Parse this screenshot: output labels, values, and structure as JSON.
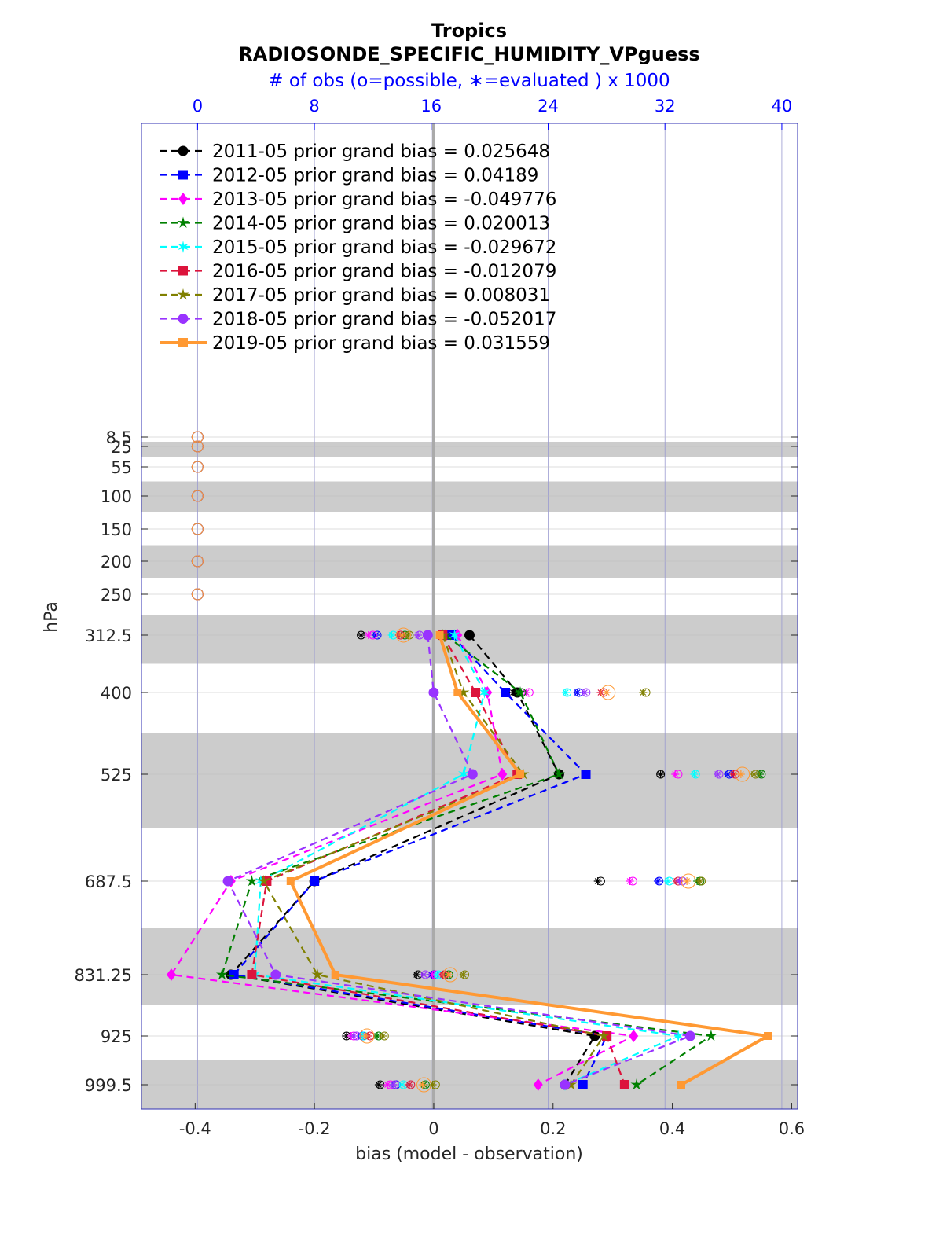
{
  "chart_data": {
    "type": "line",
    "title": "Tropics",
    "subtitle": "RADIOSONDE_SPECIFIC_HUMIDITY_VPguess",
    "top_axis_label": "# of obs (o=possible, ∗=evaluated ) x 1000",
    "xlabel": "bias (model - observation)",
    "ylabel": "hPa",
    "xlim": [
      -0.49,
      0.61
    ],
    "top_xlim": [
      -3.84,
      41.08
    ],
    "ylim_reversed": true,
    "x_ticks": [
      -0.4,
      -0.2,
      0,
      0.2,
      0.4,
      0.6
    ],
    "x_tick_labels": [
      "-0.4",
      "-0.2",
      "0",
      "0.2",
      "0.4",
      "0.6"
    ],
    "top_ticks": [
      0,
      8,
      16,
      24,
      32,
      40
    ],
    "top_tick_labels": [
      "0",
      "8",
      "16",
      "24",
      "32",
      "40"
    ],
    "levels": [
      8.5,
      25,
      55,
      100,
      150,
      200,
      250,
      312.5,
      400,
      525,
      687.5,
      831.25,
      925,
      999.5
    ],
    "level_labels": [
      "8.5",
      "25",
      "55",
      "100",
      "150",
      "200",
      "250",
      "312.5",
      "400",
      "525",
      "687.5",
      "831.25",
      "925",
      "999.5"
    ],
    "bias_levels": [
      312.5,
      400,
      525,
      687.5,
      831.25,
      925,
      999.5
    ],
    "grid": true,
    "legend_placement": "top-left",
    "series": [
      {
        "name": "2011-05 prior grand bias = 0.025648",
        "color": "#000000",
        "marker": "circle",
        "style": "dashed",
        "bias": [
          0.06,
          0.14,
          0.21,
          -0.2,
          -0.34,
          0.27,
          0.22
        ],
        "possible": [
          11.2,
          21.8,
          31.7,
          27.6,
          15.1,
          10.2,
          12.5
        ],
        "evaluated": [
          11.2,
          21.6,
          31.7,
          27.4,
          15.0,
          10.2,
          12.4
        ]
      },
      {
        "name": "2012-05 prior grand bias = 0.04189",
        "color": "#0000ff",
        "marker": "square",
        "style": "dashed",
        "bias": [
          0.03,
          0.12,
          0.255,
          -0.2,
          -0.335,
          0.29,
          0.25
        ],
        "possible": [
          12.3,
          26.1,
          36.4,
          31.6,
          16.2,
          11.3,
          13.6
        ],
        "evaluated": [
          12.2,
          26.0,
          36.3,
          31.5,
          16.0,
          11.2,
          13.4
        ]
      },
      {
        "name": "2013-05 prior grand bias = -0.049776",
        "color": "#ff00ff",
        "marker": "diamond",
        "style": "dashed",
        "bias": [
          0.04,
          0.09,
          0.115,
          -0.34,
          -0.44,
          0.335,
          0.175
        ],
        "possible": [
          12.0,
          22.7,
          32.9,
          29.8,
          16.3,
          10.7,
          13.2
        ],
        "evaluated": [
          11.7,
          22.5,
          32.7,
          29.6,
          16.1,
          10.5,
          13.0
        ]
      },
      {
        "name": "2014-05 prior grand bias = 0.020013",
        "color": "#008000",
        "marker": "star",
        "style": "dashed",
        "bias": [
          0.02,
          0.145,
          0.21,
          -0.305,
          -0.355,
          0.465,
          0.34
        ],
        "possible": [
          14.2,
          22.2,
          38.6,
          34.4,
          17.2,
          12.4,
          15.6
        ],
        "evaluated": [
          14.1,
          22.0,
          38.5,
          34.2,
          17.1,
          12.3,
          15.5
        ]
      },
      {
        "name": "2015-05 prior grand bias = -0.029672",
        "color": "#00ffff",
        "marker": "hexagram",
        "style": "dashed",
        "bias": [
          0.035,
          0.085,
          0.05,
          -0.29,
          -0.3,
          0.41,
          0.22
        ],
        "possible": [
          13.4,
          25.3,
          34.1,
          32.3,
          16.5,
          11.4,
          14.1
        ],
        "evaluated": [
          13.3,
          25.2,
          34.0,
          32.2,
          16.4,
          11.3,
          14.0
        ]
      },
      {
        "name": "2016-05 prior grand bias = -0.012079",
        "color": "#dc143c",
        "marker": "square",
        "style": "dashed",
        "bias": [
          0.015,
          0.07,
          0.14,
          -0.28,
          -0.305,
          0.29,
          0.32
        ],
        "possible": [
          13.9,
          27.8,
          36.8,
          32.9,
          16.9,
          11.8,
          14.6
        ],
        "evaluated": [
          13.8,
          27.6,
          36.7,
          32.8,
          16.8,
          11.7,
          14.5
        ]
      },
      {
        "name": "2017-05 prior grand bias = 0.008031",
        "color": "#808000",
        "marker": "star",
        "style": "dashed",
        "bias": [
          0.015,
          0.05,
          0.15,
          -0.285,
          -0.195,
          0.285,
          0.23
        ],
        "possible": [
          14.5,
          30.7,
          38.2,
          34.5,
          18.3,
          12.8,
          16.3
        ],
        "evaluated": [
          14.4,
          30.5,
          38.1,
          34.4,
          18.2,
          12.7,
          16.1
        ]
      },
      {
        "name": "2018-05 prior grand bias = -0.052017",
        "color": "#9933ff",
        "marker": "circle",
        "style": "dashed",
        "bias": [
          -0.01,
          0.0,
          0.065,
          -0.345,
          -0.265,
          0.43,
          0.22
        ],
        "possible": [
          15.2,
          26.6,
          35.7,
          33.2,
          15.6,
          10.9,
          13.5
        ],
        "evaluated": [
          15.1,
          26.5,
          35.6,
          33.0,
          15.5,
          10.7,
          13.4
        ]
      },
      {
        "name": "2019-05 prior grand bias = 0.031559",
        "color": "#ff9933",
        "marker": "square",
        "style": "solid",
        "bias": [
          0.01,
          0.04,
          0.145,
          -0.24,
          -0.165,
          0.56,
          0.415
        ],
        "possible": [
          14.1,
          28.1,
          37.3,
          33.6,
          17.3,
          11.6,
          15.5
        ],
        "evaluated": [
          14.0,
          28.0,
          37.2,
          33.5,
          17.2,
          11.5,
          15.4
        ]
      }
    ],
    "top_levels_obs": [
      0,
      0,
      0,
      0,
      0,
      0,
      0
    ]
  }
}
